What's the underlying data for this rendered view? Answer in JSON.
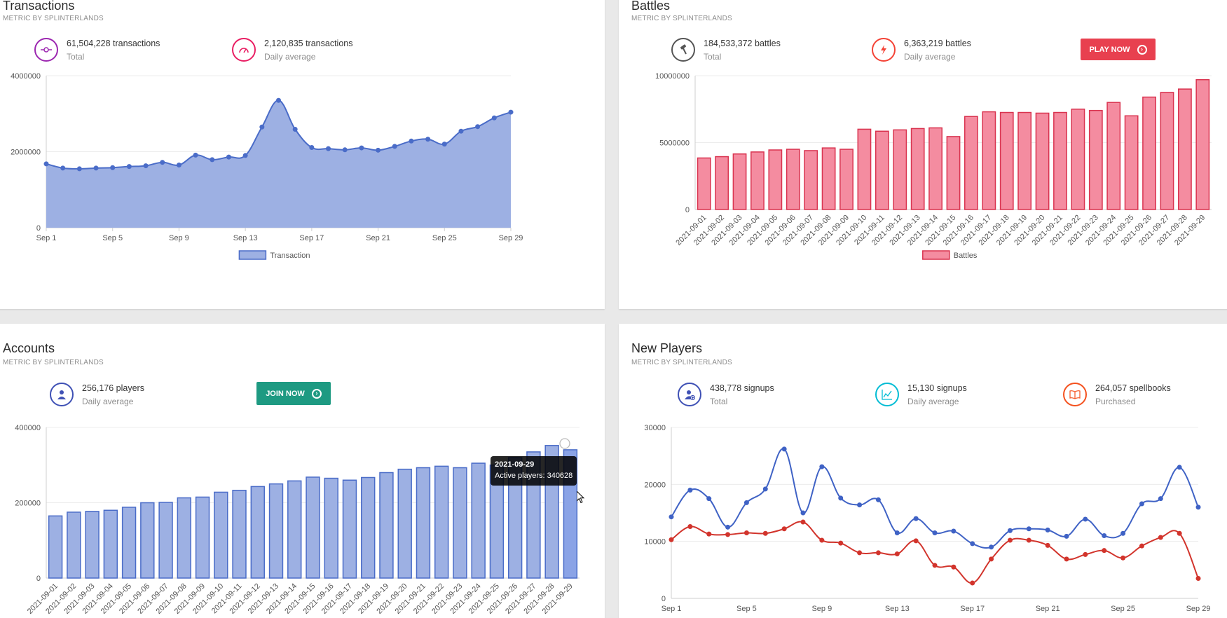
{
  "transactions": {
    "title": "Transactions",
    "subtitle": "METRIC BY SPLINTERLANDS",
    "stats": [
      {
        "value": "61,504,228 transactions",
        "label": "Total",
        "icon": "commit-icon",
        "color": "#9c27b0"
      },
      {
        "value": "2,120,835 transactions",
        "label": "Daily average",
        "icon": "gauge-icon",
        "color": "#e91e63"
      }
    ]
  },
  "battles": {
    "title": "Battles",
    "subtitle": "METRIC BY SPLINTERLANDS",
    "stats": [
      {
        "value": "184,533,372 battles",
        "label": "Total",
        "icon": "hammer-icon",
        "color": "#555555"
      },
      {
        "value": "6,363,219 battles",
        "label": "Daily average",
        "icon": "lightning-icon",
        "color": "#f44336"
      }
    ],
    "button": {
      "label": "PLAY NOW",
      "color": "#e8404f"
    }
  },
  "accounts": {
    "title": "Accounts",
    "subtitle": "METRIC BY SPLINTERLANDS",
    "stats": [
      {
        "value": "256,176 players",
        "label": "Daily average",
        "icon": "user-icon",
        "color": "#3f51b5"
      }
    ],
    "button": {
      "label": "JOIN NOW",
      "color": "#1e9a82"
    },
    "tooltip": {
      "date": "2021-09-29",
      "text": "Active players: 340628"
    }
  },
  "new_players": {
    "title": "New Players",
    "subtitle": "METRIC BY SPLINTERLANDS",
    "stats": [
      {
        "value": "438,778 signups",
        "label": "Total",
        "icon": "user-add-icon",
        "color": "#3f51b5"
      },
      {
        "value": "15,130 signups",
        "label": "Daily average",
        "icon": "chart-line-icon",
        "color": "#00bcd4"
      },
      {
        "value": "264,057 spellbooks",
        "label": "Purchased",
        "icon": "book-icon",
        "color": "#f4511e"
      }
    ]
  },
  "chart_data": [
    {
      "id": "transactions",
      "type": "area",
      "x": [
        "2021-09-01",
        "2021-09-02",
        "2021-09-03",
        "2021-09-04",
        "2021-09-05",
        "2021-09-06",
        "2021-09-07",
        "2021-09-08",
        "2021-09-09",
        "2021-09-10",
        "2021-09-11",
        "2021-09-12",
        "2021-09-13",
        "2021-09-14",
        "2021-09-15",
        "2021-09-16",
        "2021-09-17",
        "2021-09-18",
        "2021-09-19",
        "2021-09-20",
        "2021-09-21",
        "2021-09-22",
        "2021-09-23",
        "2021-09-24",
        "2021-09-25",
        "2021-09-26",
        "2021-09-27",
        "2021-09-28",
        "2021-09-29"
      ],
      "tick_labels": [
        "Sep 1",
        "Sep 5",
        "Sep 9",
        "Sep 13",
        "Sep 17",
        "Sep 21",
        "Sep 25",
        "Sep 29"
      ],
      "series": [
        {
          "name": "Transaction",
          "color": "#4a6cc8",
          "fill": "#9db0e3",
          "values": [
            1680000,
            1570000,
            1550000,
            1570000,
            1580000,
            1610000,
            1630000,
            1720000,
            1650000,
            1910000,
            1790000,
            1860000,
            1900000,
            2650000,
            3350000,
            2590000,
            2110000,
            2080000,
            2050000,
            2100000,
            2040000,
            2140000,
            2280000,
            2330000,
            2200000,
            2540000,
            2660000,
            2890000,
            3040000
          ]
        }
      ],
      "ylim": [
        0,
        4000000
      ],
      "yticks": [
        0,
        2000000,
        4000000
      ],
      "legend": "bottom",
      "grid": true
    },
    {
      "id": "battles",
      "type": "bar",
      "categories": [
        "2021-09-01",
        "2021-09-02",
        "2021-09-03",
        "2021-09-04",
        "2021-09-05",
        "2021-09-06",
        "2021-09-07",
        "2021-09-08",
        "2021-09-09",
        "2021-09-10",
        "2021-09-11",
        "2021-09-12",
        "2021-09-13",
        "2021-09-14",
        "2021-09-15",
        "2021-09-16",
        "2021-09-17",
        "2021-09-18",
        "2021-09-19",
        "2021-09-20",
        "2021-09-21",
        "2021-09-22",
        "2021-09-23",
        "2021-09-24",
        "2021-09-25",
        "2021-09-26",
        "2021-09-27",
        "2021-09-28",
        "2021-09-29"
      ],
      "series": [
        {
          "name": "Battles",
          "color": "#d9334f",
          "fill": "#f48ca0",
          "values": [
            3850000,
            3950000,
            4150000,
            4300000,
            4450000,
            4500000,
            4400000,
            4600000,
            4500000,
            6000000,
            5850000,
            5950000,
            6050000,
            6100000,
            5450000,
            6950000,
            7300000,
            7250000,
            7250000,
            7200000,
            7250000,
            7500000,
            7400000,
            8000000,
            7000000,
            8400000,
            8750000,
            9000000,
            9700000
          ]
        }
      ],
      "ylim": [
        0,
        10000000
      ],
      "yticks": [
        0,
        5000000,
        10000000
      ],
      "legend": "bottom",
      "grid": true
    },
    {
      "id": "accounts",
      "type": "bar",
      "categories": [
        "2021-09-01",
        "2021-09-02",
        "2021-09-03",
        "2021-09-04",
        "2021-09-05",
        "2021-09-06",
        "2021-09-07",
        "2021-09-08",
        "2021-09-09",
        "2021-09-10",
        "2021-09-11",
        "2021-09-12",
        "2021-09-13",
        "2021-09-14",
        "2021-09-15",
        "2021-09-16",
        "2021-09-17",
        "2021-09-18",
        "2021-09-19",
        "2021-09-20",
        "2021-09-21",
        "2021-09-22",
        "2021-09-23",
        "2021-09-24",
        "2021-09-25",
        "2021-09-26",
        "2021-09-27",
        "2021-09-28",
        "2021-09-29"
      ],
      "series": [
        {
          "name": "Active players",
          "color": "#4a6cc8",
          "fill": "#9db0e3",
          "values": [
            165000,
            175000,
            177000,
            180000,
            188000,
            200000,
            201000,
            213000,
            215000,
            228000,
            233000,
            243000,
            250000,
            258000,
            268000,
            265000,
            260000,
            267000,
            280000,
            289000,
            293000,
            297000,
            293000,
            305000,
            300000,
            320000,
            335000,
            352000,
            340628
          ]
        }
      ],
      "highlight_index": 28,
      "ylim": [
        0,
        400000
      ],
      "yticks": [
        0,
        200000,
        400000
      ],
      "grid": true
    },
    {
      "id": "new_players",
      "type": "line",
      "x": [
        "2021-09-01",
        "2021-09-02",
        "2021-09-03",
        "2021-09-04",
        "2021-09-05",
        "2021-09-06",
        "2021-09-07",
        "2021-09-08",
        "2021-09-09",
        "2021-09-10",
        "2021-09-11",
        "2021-09-12",
        "2021-09-13",
        "2021-09-14",
        "2021-09-15",
        "2021-09-16",
        "2021-09-17",
        "2021-09-18",
        "2021-09-19",
        "2021-09-20",
        "2021-09-21",
        "2021-09-22",
        "2021-09-23",
        "2021-09-24",
        "2021-09-25",
        "2021-09-26",
        "2021-09-27",
        "2021-09-28",
        "2021-09-29"
      ],
      "tick_labels": [
        "Sep 1",
        "Sep 5",
        "Sep 9",
        "Sep 13",
        "Sep 17",
        "Sep 21",
        "Sep 25",
        "Sep 29"
      ],
      "series": [
        {
          "name": "Signups",
          "color": "#3f62c5",
          "values": [
            14300,
            19000,
            17500,
            12500,
            16800,
            19200,
            26200,
            15000,
            23100,
            17600,
            16400,
            17300,
            11500,
            14000,
            11500,
            11800,
            9600,
            9000,
            11900,
            12200,
            12000,
            10900,
            13900,
            11000,
            11400,
            16600,
            17500,
            23000,
            16000
          ]
        },
        {
          "name": "Spellbooks",
          "color": "#d2342c",
          "values": [
            10300,
            12600,
            11300,
            11200,
            11500,
            11400,
            12200,
            13400,
            10200,
            9700,
            8000,
            8000,
            7800,
            10100,
            5800,
            5500,
            2700,
            6900,
            10200,
            10200,
            9300,
            6900,
            7700,
            8400,
            7100,
            9200,
            10700,
            11400,
            3500
          ]
        }
      ],
      "ylim": [
        0,
        30000
      ],
      "yticks": [
        0,
        10000,
        20000,
        30000
      ],
      "grid": true
    }
  ]
}
